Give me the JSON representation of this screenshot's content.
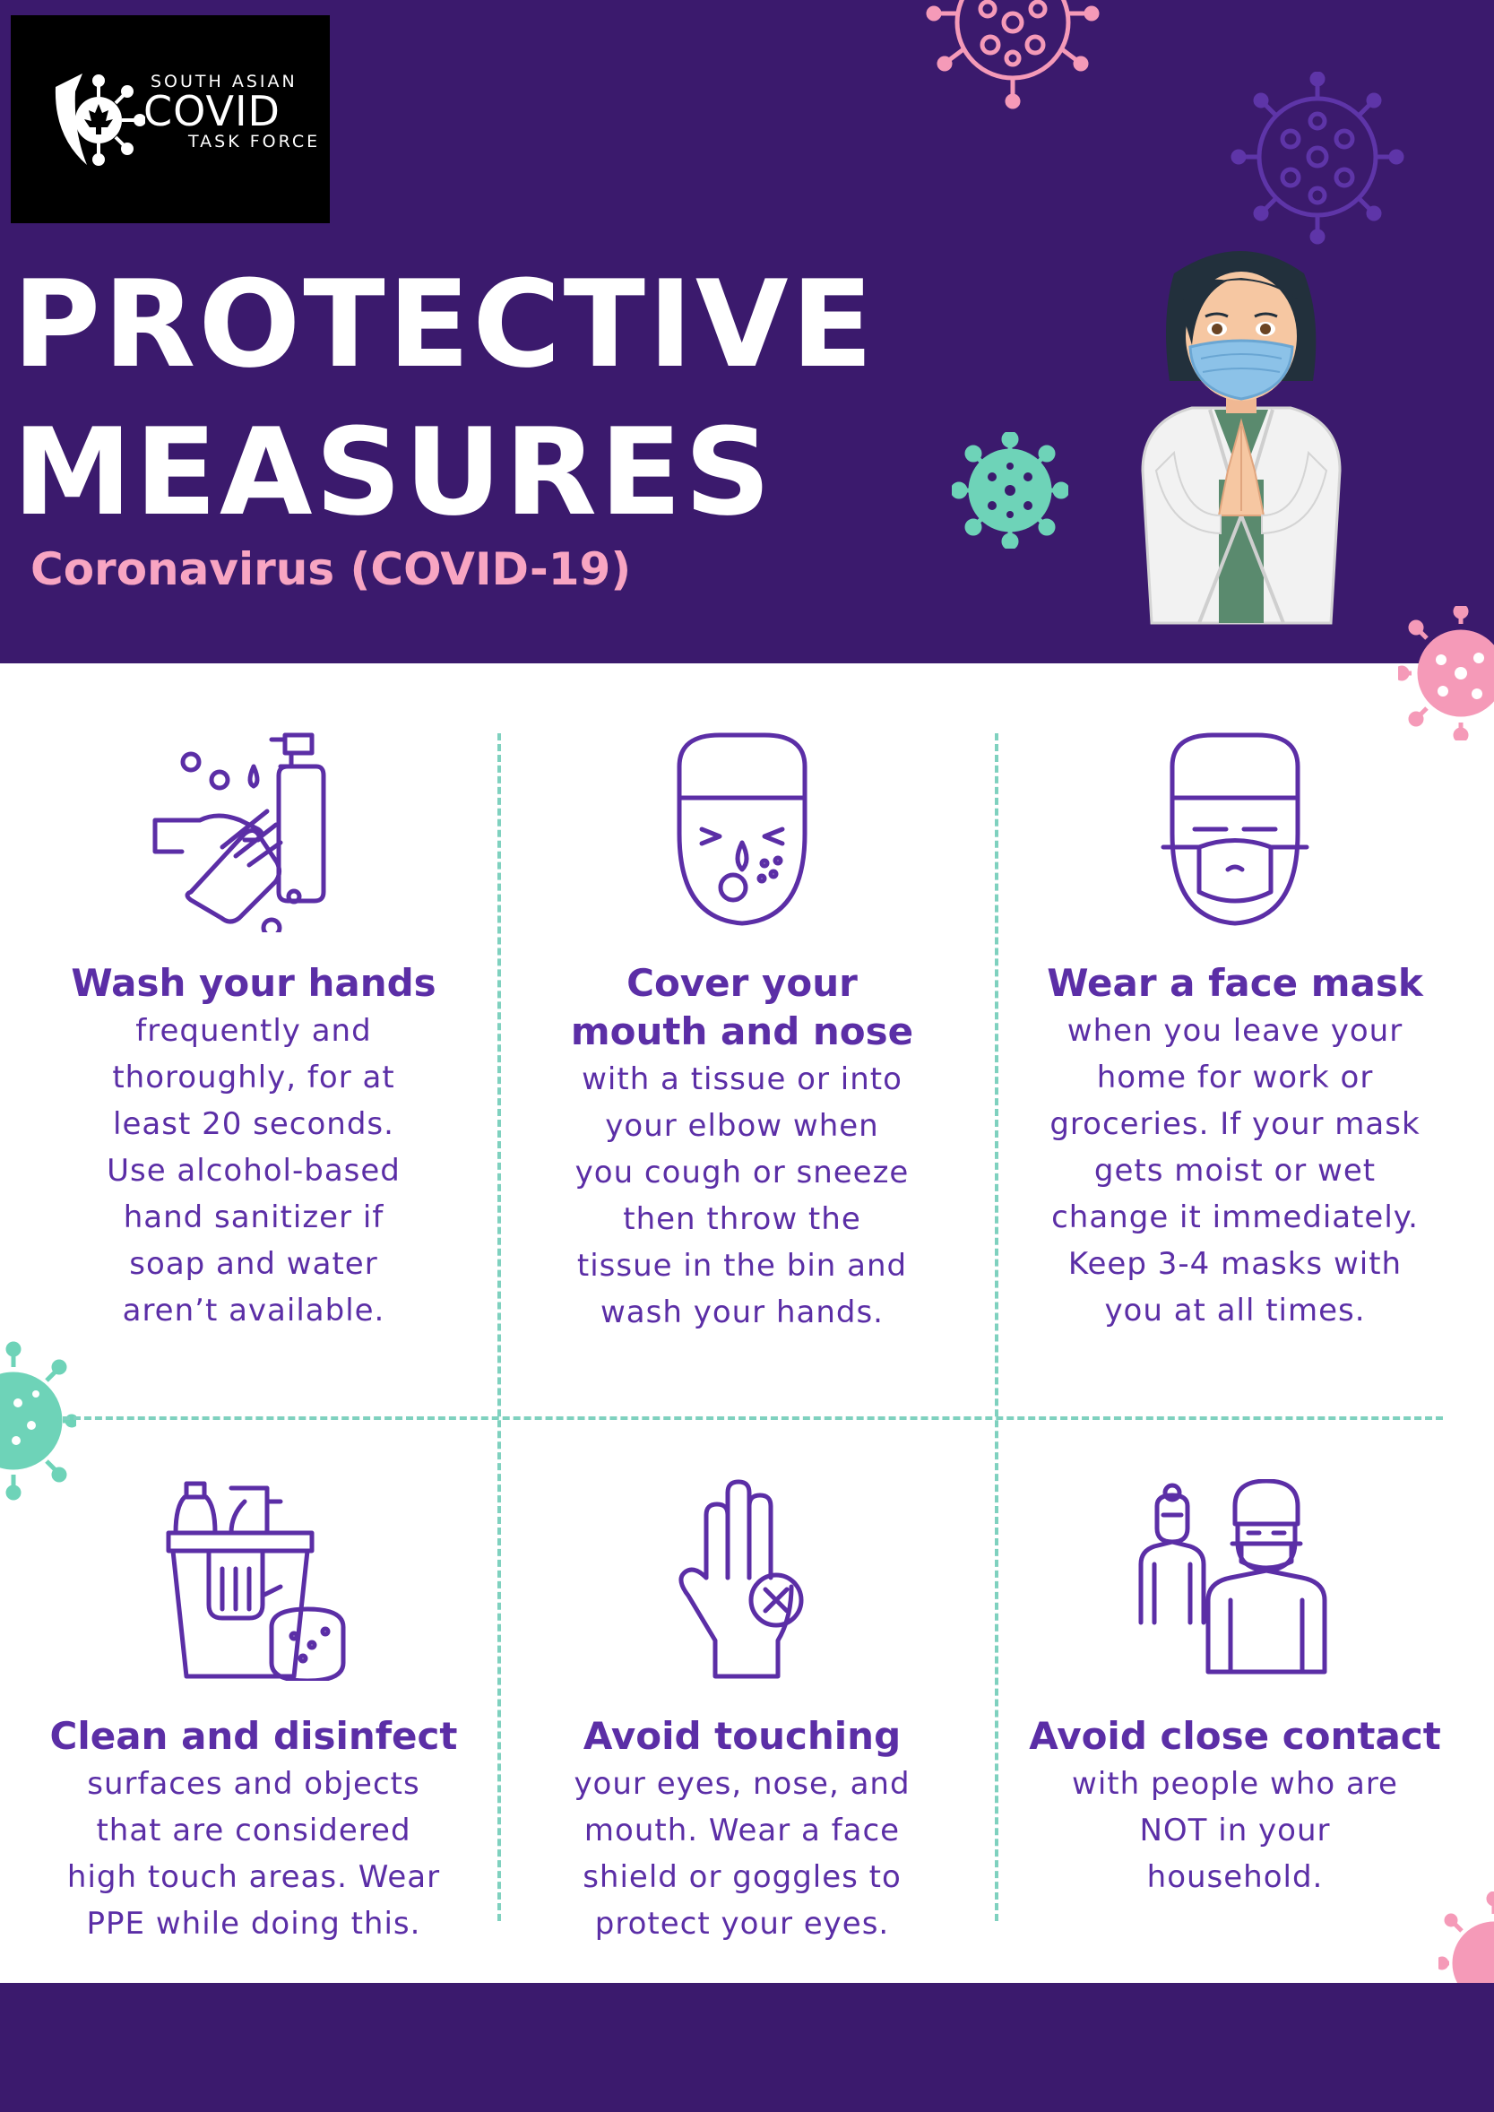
{
  "logo": {
    "line1": "SOUTH ASIAN",
    "line2": "COVID",
    "line3": "TASK FORCE",
    "icon": "covid-shield-maple-leaf"
  },
  "header": {
    "title_line1": "PROTECTIVE",
    "title_line2": "MEASURES",
    "subtitle": "Coronavirus (COVID-19)"
  },
  "colors": {
    "brand_purple": "#3b1a6d",
    "text_purple": "#5b2ea6",
    "pink": "#f8a5c2",
    "teal": "#6ed3b8",
    "white": "#ffffff"
  },
  "measures": [
    {
      "icon": "hand-washing-icon",
      "heading": "Wash your hands",
      "lines": [
        "frequently and",
        "thoroughly, for at",
        "least 20 seconds.",
        "Use alcohol-based",
        "hand sanitizer if",
        "soap and water",
        "aren’t available."
      ]
    },
    {
      "icon": "sneezing-face-icon",
      "heading_lines": [
        "Cover your",
        "mouth and nose"
      ],
      "lines": [
        "with a tissue or into",
        "your elbow when",
        "you cough or sneeze",
        "then throw the",
        "tissue in the bin and",
        "wash your hands."
      ]
    },
    {
      "icon": "face-mask-icon",
      "heading": "Wear a face mask",
      "lines": [
        "when you leave your",
        "home for work or",
        "groceries. If your mask",
        "gets moist or wet",
        "change it immediately.",
        "Keep 3-4 masks with",
        "you at all times."
      ]
    },
    {
      "icon": "cleaning-supplies-icon",
      "heading": "Clean and disinfect",
      "lines": [
        "surfaces and objects",
        "that are considered",
        "high touch areas. Wear",
        "PPE while doing this."
      ]
    },
    {
      "icon": "hand-no-touch-icon",
      "heading": "Avoid touching",
      "lines": [
        "your eyes, nose, and",
        "mouth. Wear a face",
        "shield or goggles to",
        "protect your eyes."
      ]
    },
    {
      "icon": "social-distance-icon",
      "heading": "Avoid close contact",
      "lines": [
        "with people who are",
        "NOT in your",
        "household."
      ]
    }
  ],
  "decorations": [
    "virus-icon",
    "doctor-character"
  ]
}
